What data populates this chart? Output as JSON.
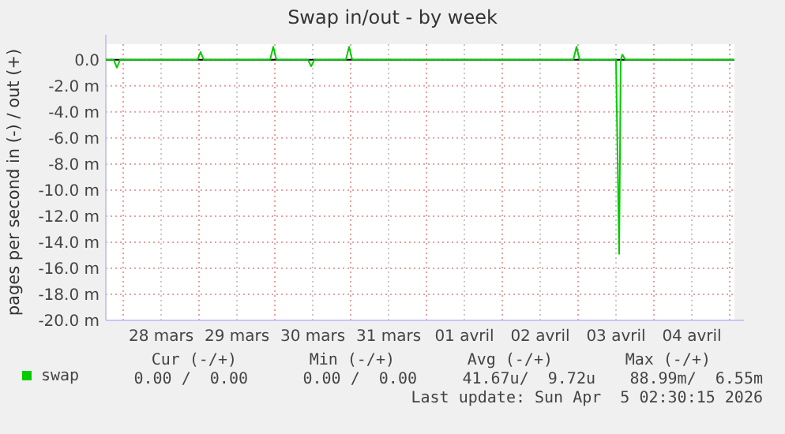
{
  "chart_data": {
    "type": "line",
    "title": "Swap in/out - by week",
    "ylabel": "pages per second in (-) / out (+)",
    "xlim": [
      "2026-03-27T18:30",
      "2026-04-05T01:30"
    ],
    "xticks": [
      {
        "value": "2026-03-28T00:00",
        "label": null
      },
      {
        "value": "2026-03-28T12:00",
        "label": "28 mars"
      },
      {
        "value": "2026-03-29T00:00",
        "label": null
      },
      {
        "value": "2026-03-29T12:00",
        "label": "29 mars"
      },
      {
        "value": "2026-03-30T00:00",
        "label": null
      },
      {
        "value": "2026-03-30T12:00",
        "label": "30 mars"
      },
      {
        "value": "2026-03-31T00:00",
        "label": null
      },
      {
        "value": "2026-03-31T12:00",
        "label": "31 mars"
      },
      {
        "value": "2026-04-01T00:00",
        "label": null
      },
      {
        "value": "2026-04-01T12:00",
        "label": "01 avril"
      },
      {
        "value": "2026-04-02T00:00",
        "label": null
      },
      {
        "value": "2026-04-02T12:00",
        "label": "02 avril"
      },
      {
        "value": "2026-04-03T00:00",
        "label": null
      },
      {
        "value": "2026-04-03T12:00",
        "label": "03 avril"
      },
      {
        "value": "2026-04-04T00:00",
        "label": null
      },
      {
        "value": "2026-04-04T12:00",
        "label": "04 avril"
      },
      {
        "value": "2026-04-05T00:00",
        "label": null
      }
    ],
    "ylim": [
      -20,
      1.2
    ],
    "yticks": [
      {
        "value": 0,
        "label": "0.0"
      },
      {
        "value": -2,
        "label": "-2.0 m"
      },
      {
        "value": -4,
        "label": "-4.0 m"
      },
      {
        "value": -6,
        "label": "-6.0 m"
      },
      {
        "value": -8,
        "label": "-8.0 m"
      },
      {
        "value": -10,
        "label": "-10.0 m"
      },
      {
        "value": -12,
        "label": "-12.0 m"
      },
      {
        "value": -14,
        "label": "-14.0 m"
      },
      {
        "value": -16,
        "label": "-16.0 m"
      },
      {
        "value": -18,
        "label": "-18.0 m"
      },
      {
        "value": -20,
        "label": "-20.0 m"
      }
    ],
    "grid": true,
    "legend": "bottom",
    "marker": "none",
    "line_style": "solid",
    "ref_lines": [
      {
        "axis": "y",
        "value": 0,
        "color": "#000000"
      }
    ],
    "series": [
      {
        "name": "swap",
        "color": "#00cc00",
        "x": [
          "2026-03-27T18:30",
          "2026-03-27T21:00",
          "2026-03-27T22:00",
          "2026-03-27T23:00",
          "2026-03-28T23:30",
          "2026-03-29T00:30",
          "2026-03-29T01:30",
          "2026-03-29T22:30",
          "2026-03-29T23:30",
          "2026-03-30T00:30",
          "2026-03-30T10:30",
          "2026-03-30T11:30",
          "2026-03-30T12:30",
          "2026-03-30T22:30",
          "2026-03-30T23:30",
          "2026-03-31T00:30",
          "2026-04-02T22:30",
          "2026-04-02T23:30",
          "2026-04-03T00:30",
          "2026-04-03T12:00",
          "2026-04-03T13:00",
          "2026-04-03T13:30",
          "2026-04-03T14:00",
          "2026-04-03T15:00",
          "2026-04-05T01:30"
        ],
        "values": [
          0,
          0,
          -0.6,
          0,
          0,
          0.6,
          0,
          0,
          1,
          0,
          0,
          -0.5,
          0,
          0,
          1,
          0,
          0,
          1,
          0,
          0,
          -14.9,
          0,
          0.4,
          0,
          0
        ]
      }
    ],
    "annotations": [
      "Cur (-/+)",
      "Min (-/+)",
      "Avg (-/+)",
      "Max (-/+)",
      "0.00 /  0.00",
      "0.00 /  0.00",
      "41.67u/  9.72u",
      "88.99m/  6.55m",
      "Last update: Sun Apr  5 02:30:15 2026"
    ]
  }
}
